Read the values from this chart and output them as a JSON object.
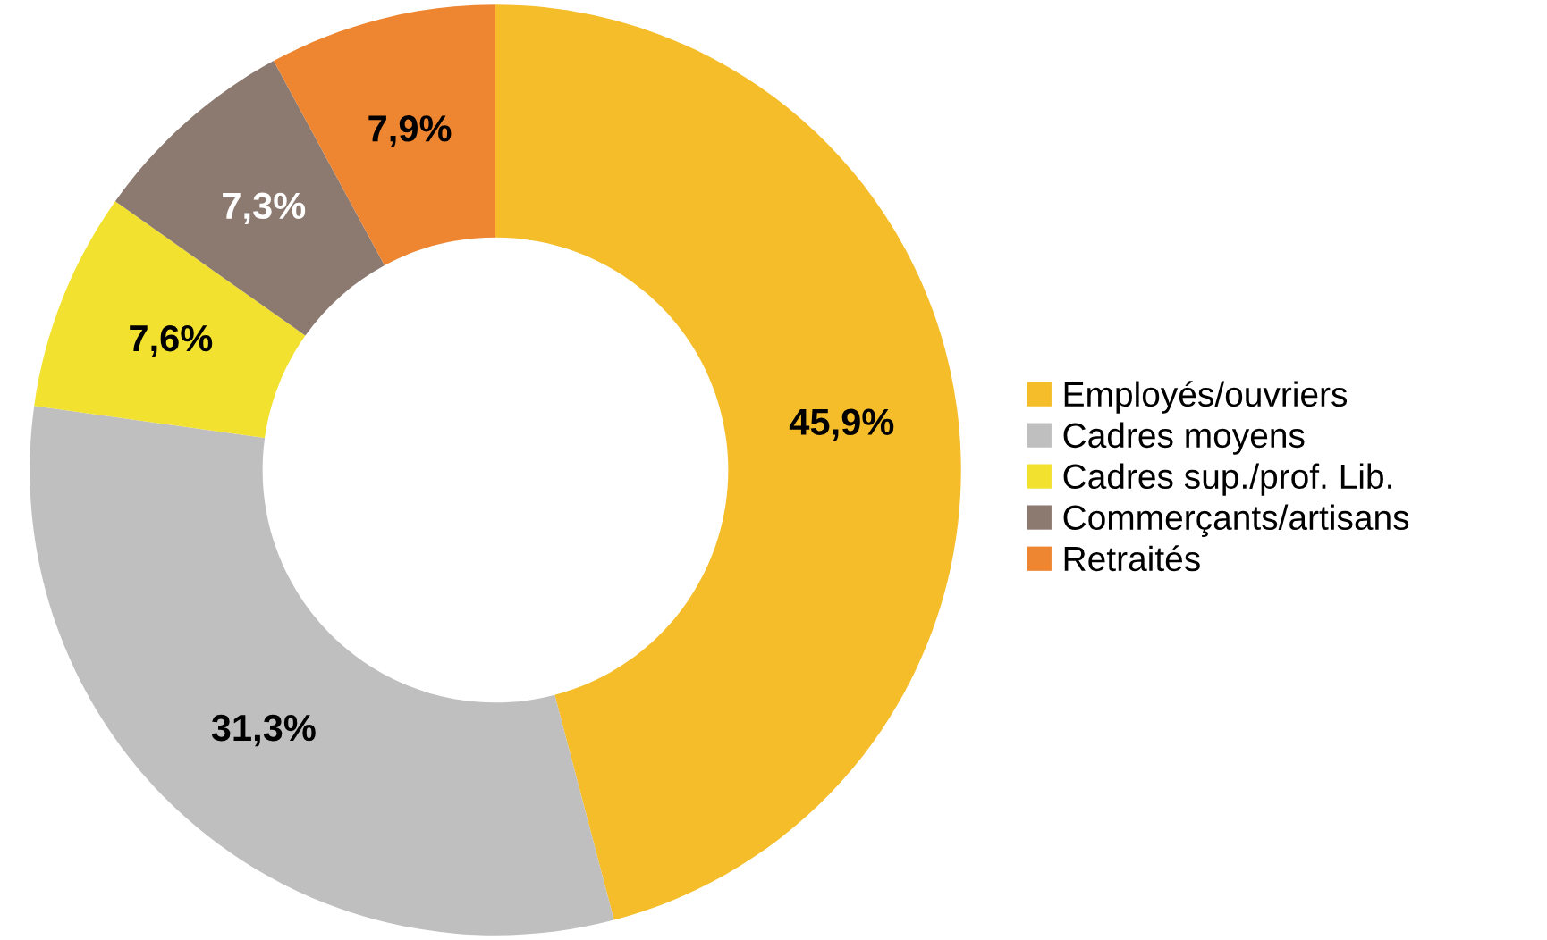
{
  "chart_data": {
    "type": "donut",
    "categories": [
      "Employés/ouvriers",
      "Cadres moyens",
      "Cadres sup./prof. Lib.",
      "Commerçants/artisans",
      "Retraités"
    ],
    "values": [
      45.9,
      31.3,
      7.6,
      7.3,
      7.9
    ],
    "colors": [
      "#f5bd2a",
      "#bfbfbf",
      "#f2e12f",
      "#8c7a70",
      "#ee8530"
    ],
    "value_labels": [
      "45,9%",
      "31,3%",
      "7,6%",
      "7,3%",
      "7,9%"
    ],
    "legend": "right"
  }
}
